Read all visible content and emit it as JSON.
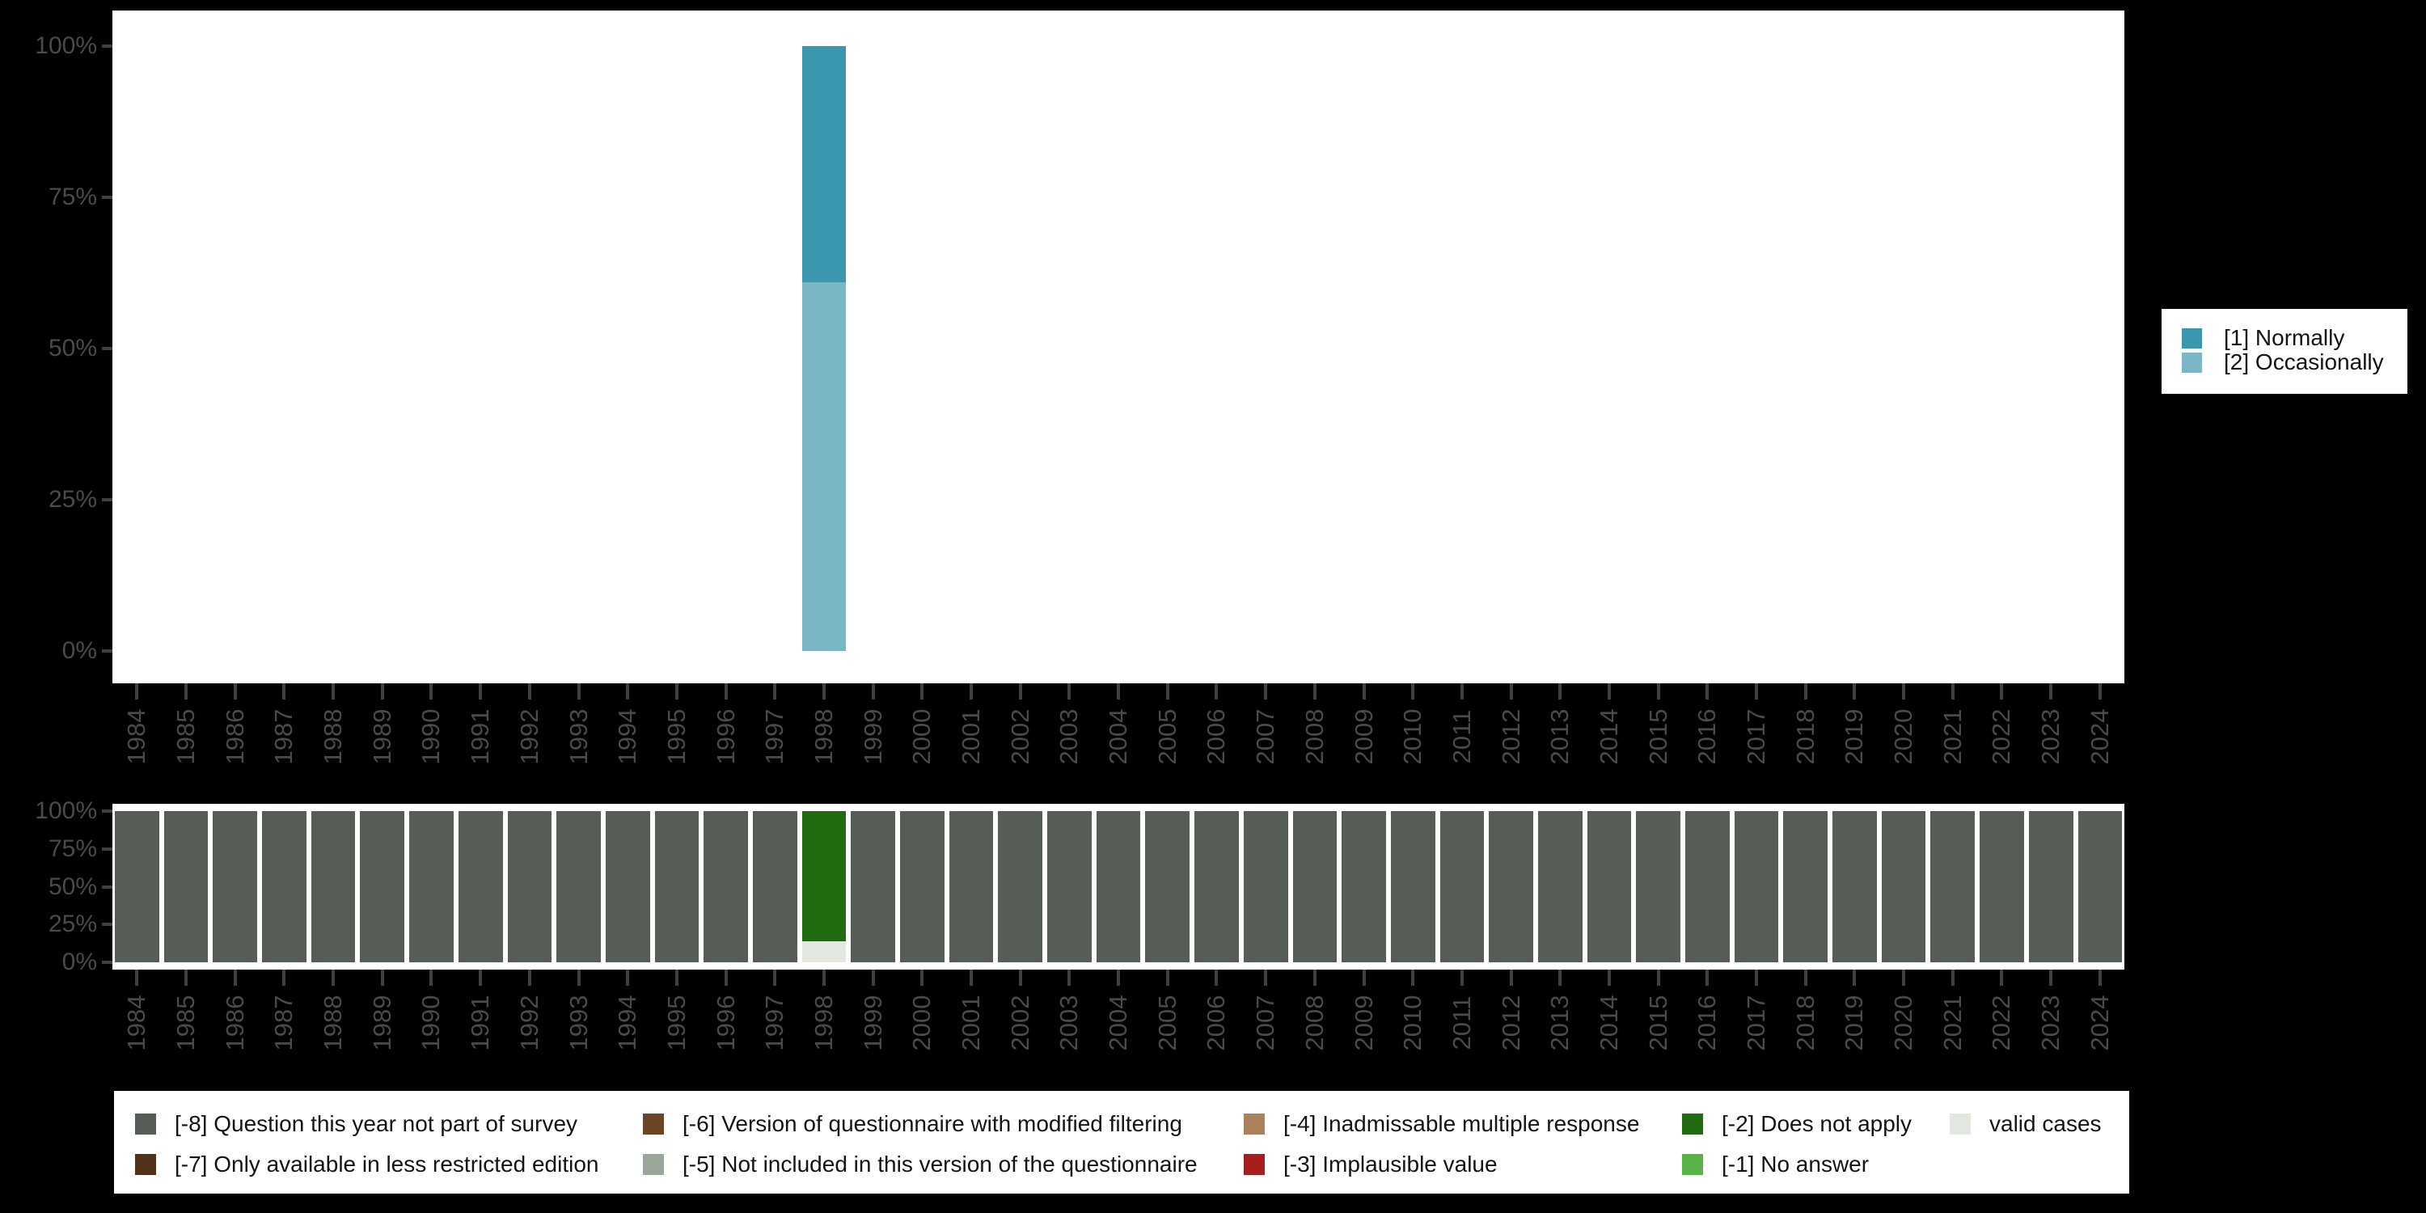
{
  "background_color": "#000000",
  "panel_color": "#ffffff",
  "axis_text_color": "#4a4a4a",
  "chart_data": [
    {
      "type": "bar",
      "stacked": true,
      "role": "value-distribution-by-year",
      "legend_position": "right",
      "grid": false,
      "ylim": [
        0,
        100
      ],
      "values_unit": "percent",
      "y_tick_labels": [
        "100%",
        "75%",
        "50%",
        "25%",
        "0%"
      ],
      "categories": [
        "1984",
        "1985",
        "1986",
        "1987",
        "1988",
        "1989",
        "1990",
        "1991",
        "1992",
        "1993",
        "1994",
        "1995",
        "1996",
        "1997",
        "1998",
        "1999",
        "2000",
        "2001",
        "2002",
        "2003",
        "2004",
        "2005",
        "2006",
        "2007",
        "2008",
        "2009",
        "2010",
        "2011",
        "2012",
        "2013",
        "2014",
        "2015",
        "2016",
        "2017",
        "2018",
        "2019",
        "2020",
        "2021",
        "2022",
        "2023",
        "2024"
      ],
      "series": [
        {
          "name": "[1] Normally",
          "color": "#3A97AE",
          "values": [
            0,
            0,
            0,
            0,
            0,
            0,
            0,
            0,
            0,
            0,
            0,
            0,
            0,
            0,
            39,
            0,
            0,
            0,
            0,
            0,
            0,
            0,
            0,
            0,
            0,
            0,
            0,
            0,
            0,
            0,
            0,
            0,
            0,
            0,
            0,
            0,
            0,
            0,
            0,
            0,
            0
          ]
        },
        {
          "name": "[2] Occasionally",
          "color": "#7AB6C5",
          "values": [
            0,
            0,
            0,
            0,
            0,
            0,
            0,
            0,
            0,
            0,
            0,
            0,
            0,
            0,
            61,
            0,
            0,
            0,
            0,
            0,
            0,
            0,
            0,
            0,
            0,
            0,
            0,
            0,
            0,
            0,
            0,
            0,
            0,
            0,
            0,
            0,
            0,
            0,
            0,
            0,
            0
          ]
        }
      ]
    },
    {
      "type": "bar",
      "stacked": true,
      "role": "missing-values-by-year",
      "legend_position": "bottom",
      "grid": false,
      "ylim": [
        0,
        100
      ],
      "values_unit": "percent",
      "y_tick_labels": [
        "100%",
        "75%",
        "50%",
        "25%",
        "0%"
      ],
      "categories": [
        "1984",
        "1985",
        "1986",
        "1987",
        "1988",
        "1989",
        "1990",
        "1991",
        "1992",
        "1993",
        "1994",
        "1995",
        "1996",
        "1997",
        "1998",
        "1999",
        "2000",
        "2001",
        "2002",
        "2003",
        "2004",
        "2005",
        "2006",
        "2007",
        "2008",
        "2009",
        "2010",
        "2011",
        "2012",
        "2013",
        "2014",
        "2015",
        "2016",
        "2017",
        "2018",
        "2019",
        "2020",
        "2021",
        "2022",
        "2023",
        "2024"
      ],
      "series": [
        {
          "name": "[-8] Question this year not part of survey",
          "color": "#565D56",
          "values": [
            100,
            100,
            100,
            100,
            100,
            100,
            100,
            100,
            100,
            100,
            100,
            100,
            100,
            100,
            0,
            100,
            100,
            100,
            100,
            100,
            100,
            100,
            100,
            100,
            100,
            100,
            100,
            100,
            100,
            100,
            100,
            100,
            100,
            100,
            100,
            100,
            100,
            100,
            100,
            100,
            100
          ]
        },
        {
          "name": "[-2] Does not apply",
          "color": "#216B10",
          "values": [
            0,
            0,
            0,
            0,
            0,
            0,
            0,
            0,
            0,
            0,
            0,
            0,
            0,
            0,
            86,
            0,
            0,
            0,
            0,
            0,
            0,
            0,
            0,
            0,
            0,
            0,
            0,
            0,
            0,
            0,
            0,
            0,
            0,
            0,
            0,
            0,
            0,
            0,
            0,
            0,
            0
          ]
        },
        {
          "name": "valid cases",
          "color": "#E2E7DF",
          "values": [
            0,
            0,
            0,
            0,
            0,
            0,
            0,
            0,
            0,
            0,
            0,
            0,
            0,
            0,
            14,
            0,
            0,
            0,
            0,
            0,
            0,
            0,
            0,
            0,
            0,
            0,
            0,
            0,
            0,
            0,
            0,
            0,
            0,
            0,
            0,
            0,
            0,
            0,
            0,
            0,
            0
          ]
        }
      ]
    }
  ],
  "right_legend": {
    "items": [
      {
        "label": "[1] Normally",
        "color": "#3A97AE"
      },
      {
        "label": "[2] Occasionally",
        "color": "#7AB6C5"
      }
    ]
  },
  "bottom_legend": {
    "columns": [
      [
        {
          "label": "[-8] Question this year not part of survey",
          "color": "#565D56"
        },
        {
          "label": "[-7] Only available in less restricted edition",
          "color": "#53321A"
        }
      ],
      [
        {
          "label": "[-6] Version of questionnaire with modified filtering",
          "color": "#6C4524"
        },
        {
          "label": "[-5] Not included in this version of the questionnaire",
          "color": "#9CA79B"
        }
      ],
      [
        {
          "label": "[-4] Inadmissable multiple response",
          "color": "#AA815A"
        },
        {
          "label": "[-3] Implausible value",
          "color": "#A81E1E"
        }
      ],
      [
        {
          "label": "[-2] Does not apply",
          "color": "#216B10"
        },
        {
          "label": "[-1] No answer",
          "color": "#57B548"
        }
      ],
      [
        {
          "label": "valid cases",
          "color": "#E2E7DF"
        }
      ]
    ]
  }
}
